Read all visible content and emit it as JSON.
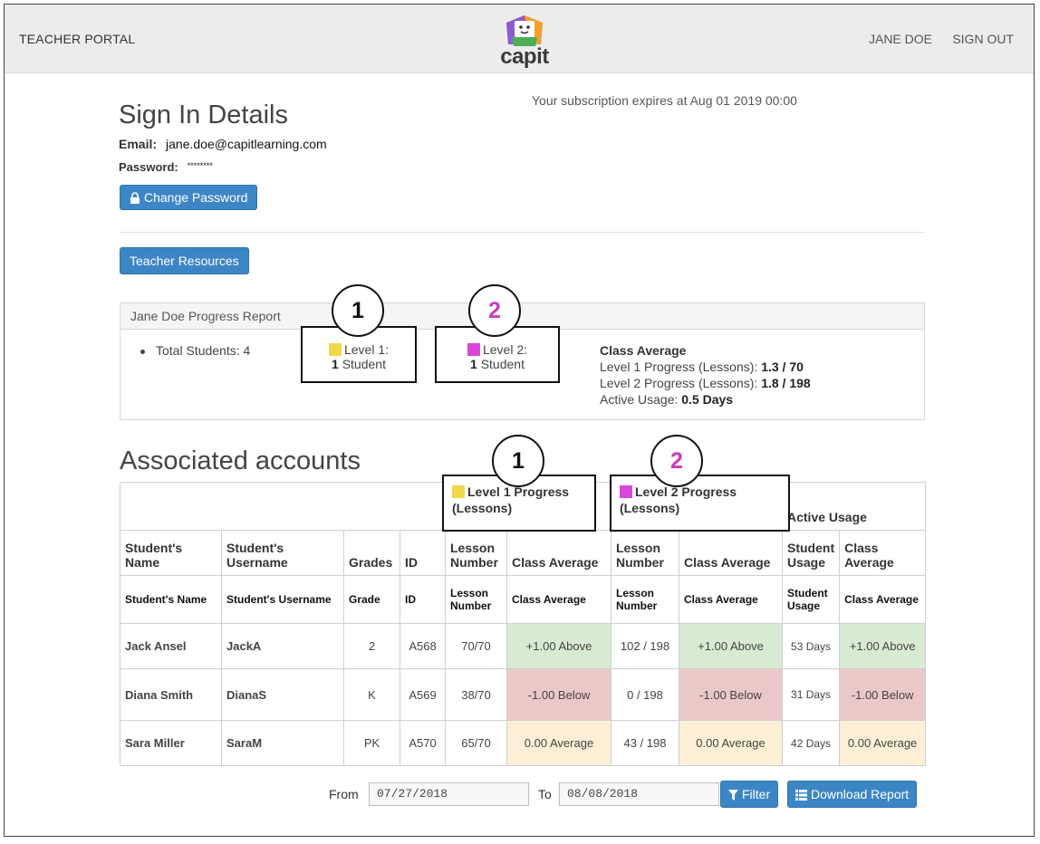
{
  "header": {
    "portal_title": "TEACHER PORTAL",
    "logo_text": "capit",
    "user_name": "JANE DOE",
    "sign_out": "SIGN OUT"
  },
  "subscription": "Your subscription expires at Aug 01 2019 00:00",
  "sign_in": {
    "title": "Sign In Details",
    "email_label": "Email:",
    "email_value": "jane.doe@capitlearning.com",
    "password_label": "Password:",
    "password_value": "********",
    "change_password": "Change Password"
  },
  "teacher_resources": "Teacher Resources",
  "report": {
    "title": "Jane Doe Progress Report",
    "total_students": "Total Students: 4",
    "level1": {
      "label": "Level 1:",
      "count": "1",
      "unit": " Student",
      "color": "#f0d84a"
    },
    "level2": {
      "label": "Level 2:",
      "count": "1",
      "unit": " Student",
      "color": "#d946d9"
    },
    "class_average": {
      "title": "Class Average",
      "l1_label": "Level 1 Progress (Lessons): ",
      "l1_value": "1.3 / 70",
      "l2_label": "Level 2 Progress (Lessons): ",
      "l2_value": "1.8 / 198",
      "au_label": "Active Usage: ",
      "au_value": "0.5 Days"
    }
  },
  "callouts": {
    "one": "1",
    "two": "2"
  },
  "associated": {
    "title": "Associated accounts",
    "group_l1_line1": "Level 1 Progress",
    "group_l1_line2": "(Lessons)",
    "group_l2_line1": "Level 2 Progress",
    "group_l2_line2": "(Lessons)",
    "group_au": "Active Usage",
    "headers": [
      "Student's Name",
      "Student's Username",
      "Grades",
      "ID",
      "Lesson Number",
      "Class Average",
      "Lesson Number",
      "Class Average",
      "Student Usage",
      "Class Average"
    ],
    "subheaders": [
      "Student's Name",
      "Student's Username",
      "Grade",
      "ID",
      "Lesson Number",
      "Class Average",
      "Lesson Number",
      "Class Average",
      "Student Usage",
      "Class Average"
    ],
    "rows": [
      {
        "name": "Jack Ansel",
        "username": "JackA",
        "grade": "2",
        "id": "A568",
        "l1_lesson": "70/70",
        "l1_avg": "+1.00 Above",
        "l2_lesson": "102 / 198",
        "l2_avg": "+1.00 Above",
        "usage": "53 Days",
        "usage_avg": "+1.00 Above"
      },
      {
        "name": "Diana Smith",
        "username": "DianaS",
        "grade": "K",
        "id": "A569",
        "l1_lesson": "38/70",
        "l1_avg": "-1.00 Below",
        "l2_lesson": "0 / 198",
        "l2_avg": "-1.00 Below",
        "usage": "31 Days",
        "usage_avg": "-1.00 Below"
      },
      {
        "name": "Sara Miller",
        "username": "SaraM",
        "grade": "PK",
        "id": "A570",
        "l1_lesson": "65/70",
        "l1_avg": "0.00 Average",
        "l2_lesson": "43 / 198",
        "l2_avg": "0.00 Average",
        "usage": "42 Days",
        "usage_avg": "0.00 Average"
      }
    ],
    "status_colors": {
      "above": "#d9ead3",
      "below": "#ebc8c8",
      "average": "#fcefd6"
    }
  },
  "filters": {
    "from_label": "From",
    "from_value": "07/27/2018",
    "to_label": "To",
    "to_value": "08/08/2018",
    "filter_button": "Filter",
    "download_button": "Download Report"
  },
  "accent_color": "#3d86c6"
}
